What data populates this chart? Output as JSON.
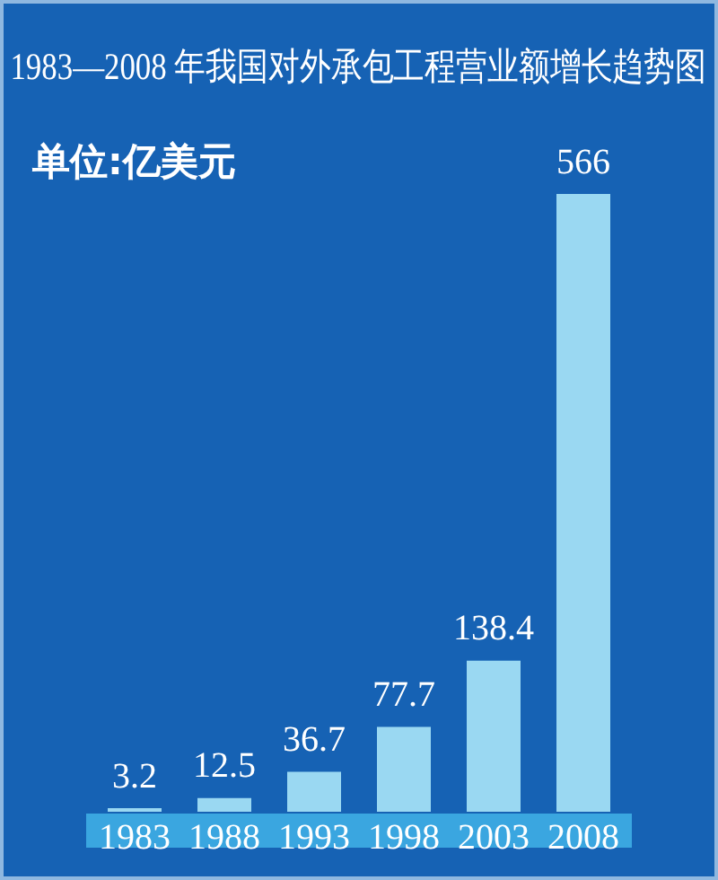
{
  "chart_data": {
    "type": "bar",
    "title": "1983—2008 年我国对外承包工程营业额增长趋势图",
    "subtitle": "单位:亿美元",
    "categories": [
      "1983",
      "1988",
      "1993",
      "1998",
      "2003",
      "2008"
    ],
    "values": [
      3.2,
      12.5,
      36.7,
      77.7,
      138.4,
      566
    ],
    "color": "#9ad8f2",
    "data_labels": true
  }
}
